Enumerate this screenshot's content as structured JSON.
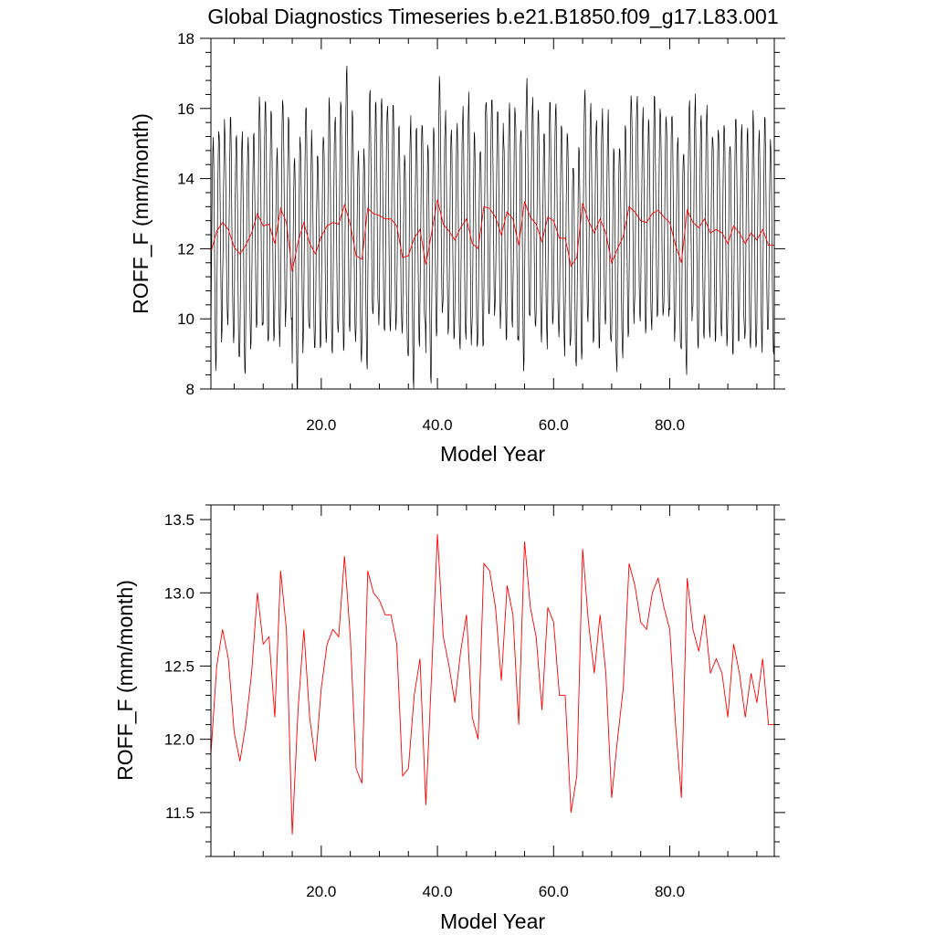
{
  "title": "Global Diagnostics Timeseries b.e21.B1850.f09_g17.L83.001",
  "chart_data": [
    {
      "type": "line",
      "xlabel": "Model Year",
      "ylabel": "ROFF_F (mm/month)",
      "xlim": [
        1,
        98
      ],
      "ylim": [
        8,
        18
      ],
      "xticks": [
        20,
        40,
        60,
        80
      ],
      "xtick_labels": [
        "20.0",
        "40.0",
        "60.0",
        "80.0"
      ],
      "yticks": [
        8,
        10,
        12,
        14,
        16,
        18
      ],
      "ytick_labels": [
        "8",
        "10",
        "12",
        "14",
        "16",
        "18"
      ],
      "grid": false,
      "series": [
        {
          "type": "monthly",
          "color": "#000000",
          "x_start": 1,
          "year_means": [
            11.9,
            12.5,
            12.75,
            12.55,
            12.05,
            11.85,
            12.1,
            12.45,
            13.0,
            12.65,
            12.7,
            12.15,
            13.15,
            12.75,
            11.35,
            12.2,
            12.75,
            12.15,
            11.85,
            12.35,
            12.65,
            12.75,
            12.7,
            13.25,
            12.7,
            11.8,
            11.7,
            13.15,
            13.0,
            12.95,
            12.85,
            12.85,
            12.65,
            11.75,
            11.8,
            12.3,
            12.55,
            11.55,
            12.45,
            13.4,
            12.7,
            12.5,
            12.25,
            12.6,
            12.85,
            12.15,
            12.0,
            13.2,
            13.15,
            12.9,
            12.4,
            13.05,
            12.85,
            12.1,
            13.35,
            12.9,
            12.7,
            12.2,
            12.9,
            12.8,
            12.3,
            12.3,
            11.5,
            11.75,
            13.3,
            12.8,
            12.45,
            12.85,
            12.45,
            11.6,
            12.0,
            12.35,
            13.2,
            13.05,
            12.8,
            12.75,
            13.0,
            13.1,
            12.9,
            12.75,
            12.1,
            11.6,
            13.1,
            12.75,
            12.6,
            12.85,
            12.45,
            12.55,
            12.45,
            12.15,
            12.65,
            12.45,
            12.15,
            12.45,
            12.25,
            12.55,
            12.1,
            12.1
          ],
          "year_amplitudes": [
            3.2,
            3.0,
            2.8,
            3.1,
            3.3,
            3.5,
            3.0,
            2.9,
            3.4,
            3.6,
            3.2,
            2.8,
            3.3,
            3.1,
            3.4,
            3.0,
            3.2,
            3.1,
            2.7,
            3.0,
            3.5,
            3.2,
            3.6,
            3.8,
            3.3,
            2.9,
            3.0,
            3.2,
            3.1,
            3.3,
            3.4,
            3.2,
            3.0,
            2.9,
            3.9,
            3.1,
            3.0,
            3.3,
            3.2,
            3.4,
            3.1,
            3.0,
            3.2,
            3.3,
            3.5,
            3.1,
            3.0,
            3.3,
            3.2,
            3.1,
            3.0,
            3.2,
            3.3,
            3.6,
            3.5,
            3.4,
            3.2,
            3.0,
            3.1,
            3.2,
            3.3,
            2.9,
            3.1,
            3.0,
            3.2,
            3.3,
            3.1,
            3.0,
            3.4,
            3.2,
            3.1,
            3.0,
            3.2,
            3.3,
            3.1,
            3.0,
            3.2,
            3.1,
            3.0,
            3.3,
            3.1,
            3.2,
            3.0,
            3.5,
            3.1,
            3.2,
            3.0,
            3.1,
            3.2,
            3.0,
            3.1,
            3.0,
            3.2,
            3.5,
            3.1,
            3.2,
            3.0,
            3.1
          ]
        },
        {
          "type": "annual",
          "color": "#ff0000",
          "x_start": 1,
          "values": [
            11.9,
            12.5,
            12.75,
            12.55,
            12.05,
            11.85,
            12.1,
            12.45,
            13.0,
            12.65,
            12.7,
            12.15,
            13.15,
            12.75,
            11.35,
            12.2,
            12.75,
            12.15,
            11.85,
            12.35,
            12.65,
            12.75,
            12.7,
            13.25,
            12.7,
            11.8,
            11.7,
            13.15,
            13.0,
            12.95,
            12.85,
            12.85,
            12.65,
            11.75,
            11.8,
            12.3,
            12.55,
            11.55,
            12.45,
            13.4,
            12.7,
            12.5,
            12.25,
            12.6,
            12.85,
            12.15,
            12.0,
            13.2,
            13.15,
            12.9,
            12.4,
            13.05,
            12.85,
            12.1,
            13.35,
            12.9,
            12.7,
            12.2,
            12.9,
            12.8,
            12.3,
            12.3,
            11.5,
            11.75,
            13.3,
            12.8,
            12.45,
            12.85,
            12.45,
            11.6,
            12.0,
            12.35,
            13.2,
            13.05,
            12.8,
            12.75,
            13.0,
            13.1,
            12.9,
            12.75,
            12.1,
            11.6,
            13.1,
            12.75,
            12.6,
            12.85,
            12.45,
            12.55,
            12.45,
            12.15,
            12.65,
            12.45,
            12.15,
            12.45,
            12.25,
            12.55,
            12.1,
            12.1
          ]
        }
      ]
    },
    {
      "type": "line",
      "xlabel": "Model Year",
      "ylabel": "ROFF_F (mm/month)",
      "xlim": [
        1,
        98
      ],
      "ylim": [
        11.2,
        13.6
      ],
      "xticks": [
        20,
        40,
        60,
        80
      ],
      "xtick_labels": [
        "20.0",
        "40.0",
        "60.0",
        "80.0"
      ],
      "yticks": [
        11.5,
        12.0,
        12.5,
        13.0,
        13.5
      ],
      "ytick_labels": [
        "11.5",
        "12.0",
        "12.5",
        "13.0",
        "13.5"
      ],
      "grid": false,
      "series": [
        {
          "type": "annual",
          "color": "#ff0000",
          "x_start": 1,
          "values": [
            11.9,
            12.5,
            12.75,
            12.55,
            12.05,
            11.85,
            12.1,
            12.45,
            13.0,
            12.65,
            12.7,
            12.15,
            13.15,
            12.75,
            11.35,
            12.2,
            12.75,
            12.15,
            11.85,
            12.35,
            12.65,
            12.75,
            12.7,
            13.25,
            12.7,
            11.8,
            11.7,
            13.15,
            13.0,
            12.95,
            12.85,
            12.85,
            12.65,
            11.75,
            11.8,
            12.3,
            12.55,
            11.55,
            12.45,
            13.4,
            12.7,
            12.5,
            12.25,
            12.6,
            12.85,
            12.15,
            12.0,
            13.2,
            13.15,
            12.9,
            12.4,
            13.05,
            12.85,
            12.1,
            13.35,
            12.9,
            12.7,
            12.2,
            12.9,
            12.8,
            12.3,
            12.3,
            11.5,
            11.75,
            13.3,
            12.8,
            12.45,
            12.85,
            12.45,
            11.6,
            12.0,
            12.35,
            13.2,
            13.05,
            12.8,
            12.75,
            13.0,
            13.1,
            12.9,
            12.75,
            12.1,
            11.6,
            13.1,
            12.75,
            12.6,
            12.85,
            12.45,
            12.55,
            12.45,
            12.15,
            12.65,
            12.45,
            12.15,
            12.45,
            12.25,
            12.55,
            12.1,
            12.1
          ]
        }
      ]
    }
  ]
}
